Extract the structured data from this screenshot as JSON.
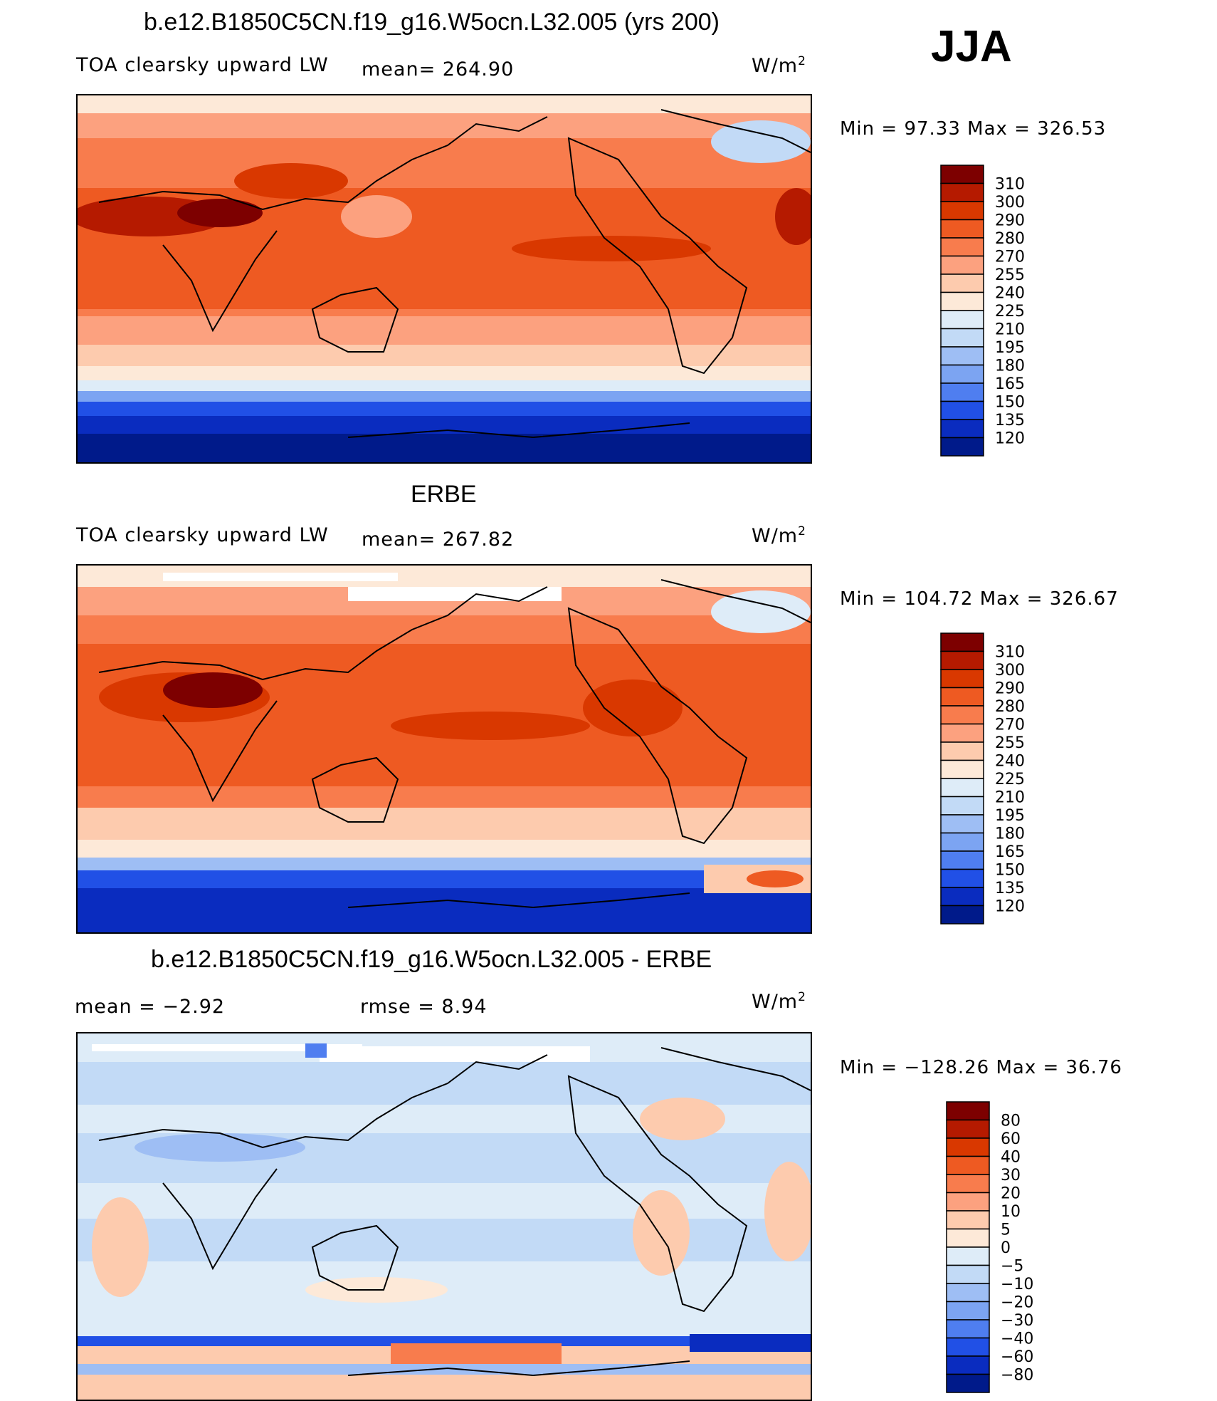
{
  "season": "JJA",
  "panels": [
    {
      "title": "b.e12.B1850C5CN.f19_g16.W5ocn.L32.005 (yrs 200)",
      "left_label": "TOA clearsky upward LW",
      "center_label": "mean=  264.90",
      "units_base": "W/m",
      "units_sup": "2",
      "minmax": "Min  =    97.33  Max  =  326.53",
      "colorbar": {
        "labels": [
          "310",
          "300",
          "290",
          "280",
          "270",
          "255",
          "240",
          "225",
          "210",
          "195",
          "180",
          "165",
          "150",
          "135",
          "120"
        ],
        "colors": [
          "#7d0000",
          "#b51a00",
          "#d93800",
          "#ee5a22",
          "#f87c4d",
          "#fca17f",
          "#fdcbae",
          "#fde9d8",
          "#deecf8",
          "#c2daf6",
          "#9ebef4",
          "#7ca4f2",
          "#4f7ef0",
          "#2150e6",
          "#0a2cbf",
          "#001a8a"
        ]
      }
    },
    {
      "title": "ERBE",
      "left_label": "TOA clearsky upward LW",
      "center_label": "mean=  267.82",
      "units_base": "W/m",
      "units_sup": "2",
      "minmax": "Min  =  104.72  Max  =  326.67",
      "colorbar": {
        "labels": [
          "310",
          "300",
          "290",
          "280",
          "270",
          "255",
          "240",
          "225",
          "210",
          "195",
          "180",
          "165",
          "150",
          "135",
          "120"
        ],
        "colors": [
          "#7d0000",
          "#b51a00",
          "#d93800",
          "#ee5a22",
          "#f87c4d",
          "#fca17f",
          "#fdcbae",
          "#fde9d8",
          "#deecf8",
          "#c2daf6",
          "#9ebef4",
          "#7ca4f2",
          "#4f7ef0",
          "#2150e6",
          "#0a2cbf",
          "#001a8a"
        ]
      }
    },
    {
      "title": "b.e12.B1850C5CN.f19_g16.W5ocn.L32.005 - ERBE",
      "left_label": "mean  =    −2.92",
      "center_label": "rmse  =     8.94",
      "units_base": "W/m",
      "units_sup": "2",
      "minmax": "Min  = −128.26  Max  =    36.76",
      "colorbar": {
        "labels": [
          "80",
          "60",
          "40",
          "30",
          "20",
          "10",
          "5",
          "0",
          "−5",
          "−10",
          "−20",
          "−30",
          "−40",
          "−60",
          "−80"
        ],
        "colors": [
          "#7d0000",
          "#b51a00",
          "#d93800",
          "#ee5a22",
          "#f87c4d",
          "#fca17f",
          "#fdcbae",
          "#fde9d8",
          "#deecf8",
          "#c2daf6",
          "#9ebef4",
          "#7ca4f2",
          "#4f7ef0",
          "#2150e6",
          "#0a2cbf",
          "#001a8a"
        ]
      }
    }
  ]
}
